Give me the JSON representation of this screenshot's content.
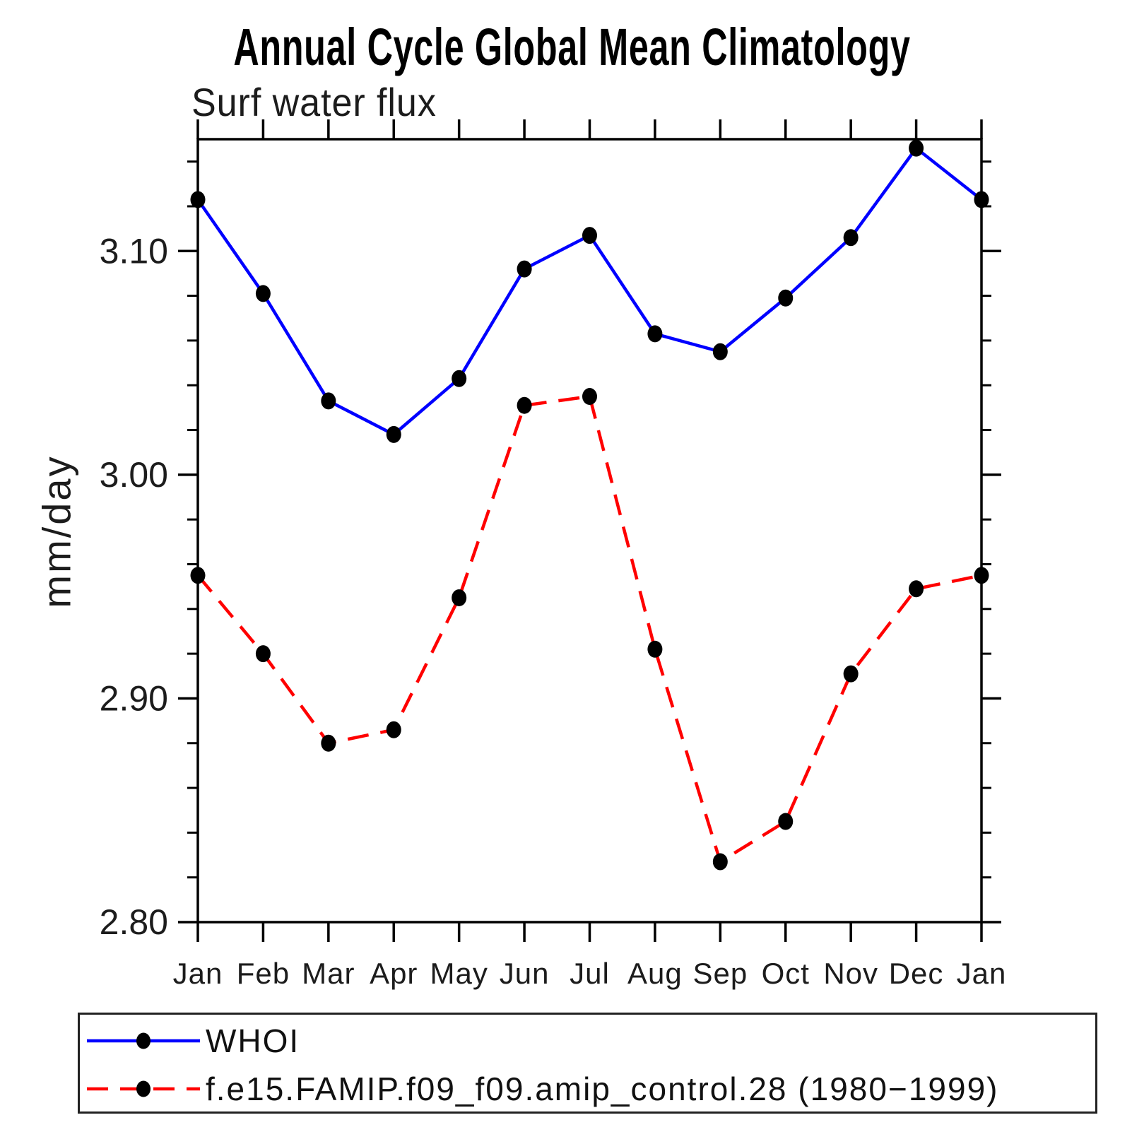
{
  "chart_data": {
    "type": "line",
    "title": "Annual Cycle Global Mean Climatology",
    "subtitle": "Surf water flux",
    "xlabel": "",
    "ylabel": "mm/day",
    "categories": [
      "Jan",
      "Feb",
      "Mar",
      "Apr",
      "May",
      "Jun",
      "Jul",
      "Aug",
      "Sep",
      "Oct",
      "Nov",
      "Dec",
      "Jan"
    ],
    "series": [
      {
        "name": "WHOI",
        "color": "#0000ff",
        "line_style": "solid",
        "dash": "none",
        "marker": "filled-circle",
        "marker_color": "#000000",
        "values": [
          3.123,
          3.081,
          3.033,
          3.018,
          3.043,
          3.092,
          3.107,
          3.063,
          3.055,
          3.079,
          3.106,
          3.146,
          3.123
        ]
      },
      {
        "name": "f.e15.FAMIP.f09_f09.amip_control.28 (1980−1999)",
        "color": "#ff0000",
        "line_style": "dashed",
        "dash": "30 17",
        "marker": "filled-circle",
        "marker_color": "#000000",
        "values": [
          2.955,
          2.92,
          2.88,
          2.886,
          2.945,
          3.031,
          3.035,
          2.922,
          2.827,
          2.845,
          2.911,
          2.949,
          2.955
        ]
      }
    ],
    "ylim": [
      2.8,
      3.15
    ],
    "yticks_major": {
      "values": [
        2.8,
        2.9,
        3.0,
        3.1
      ],
      "labels": [
        "2.80",
        "2.90",
        "3.00",
        "3.10"
      ]
    },
    "ytick_minor_step": 0.02,
    "grid": false,
    "legend_position": "bottom-left-box",
    "axis_color": "#000000"
  }
}
